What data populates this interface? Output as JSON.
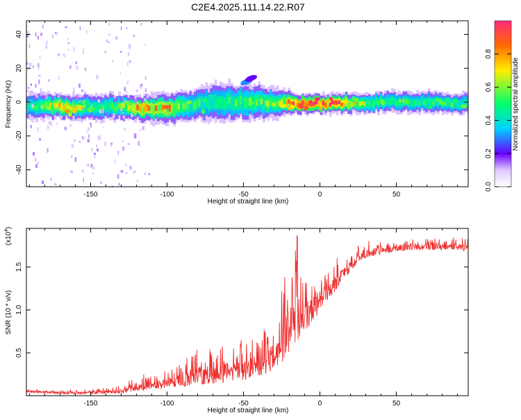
{
  "title": "C2E4.2025.111.14.22.R07",
  "colors": {
    "signal": "#ee2a2a",
    "axis": "#000000",
    "background": "#ffffff"
  },
  "colorbar": {
    "label": "Normalized spectral amplitude",
    "ticks": [
      "0.0",
      "0.2",
      "0.4",
      "0.6",
      "0.8"
    ],
    "range": [
      0,
      1
    ]
  },
  "chart_data": [
    {
      "type": "heatmap",
      "xlabel": "Height of straight line (km)",
      "ylabel": "Frequency (Hz)",
      "xlim": [
        -192,
        97
      ],
      "ylim": [
        -50,
        48
      ],
      "xticks": [
        "-150",
        "-100",
        "-50",
        "0",
        "50"
      ],
      "yticks": [
        "-40",
        "-20",
        "0",
        "20",
        "40"
      ],
      "band": [
        {
          "x": -190,
          "center": -2,
          "halfwidth": 5,
          "peak": 0.45
        },
        {
          "x": -170,
          "center": -3,
          "halfwidth": 5,
          "peak": 0.75
        },
        {
          "x": -150,
          "center": -3,
          "halfwidth": 5,
          "peak": 0.5
        },
        {
          "x": -130,
          "center": -3,
          "halfwidth": 5,
          "peak": 0.55
        },
        {
          "x": -120,
          "center": -4,
          "halfwidth": 5,
          "peak": 0.8
        },
        {
          "x": -100,
          "center": -4,
          "halfwidth": 6,
          "peak": 0.75
        },
        {
          "x": -85,
          "center": -2,
          "halfwidth": 6,
          "peak": 0.5
        },
        {
          "x": -70,
          "center": 0,
          "halfwidth": 7,
          "peak": 0.5
        },
        {
          "x": -50,
          "center": 0,
          "halfwidth": 7,
          "peak": 0.55
        },
        {
          "x": -30,
          "center": 0,
          "halfwidth": 6,
          "peak": 0.55
        },
        {
          "x": -15,
          "center": -1,
          "halfwidth": 4,
          "peak": 0.95
        },
        {
          "x": 0,
          "center": -1,
          "halfwidth": 4,
          "peak": 0.95
        },
        {
          "x": 10,
          "center": -1,
          "halfwidth": 4,
          "peak": 0.9
        },
        {
          "x": 30,
          "center": 0,
          "halfwidth": 4,
          "peak": 0.55
        },
        {
          "x": 60,
          "center": 0,
          "halfwidth": 4,
          "peak": 0.5
        },
        {
          "x": 97,
          "center": -1,
          "halfwidth": 4,
          "peak": 0.5
        }
      ],
      "features": [
        {
          "x": -48,
          "y": 12,
          "amplitude": 0.3
        },
        {
          "x": -45,
          "y": 14,
          "amplitude": 0.2
        }
      ]
    },
    {
      "type": "line",
      "xlabel": "Height of straight line (km)",
      "ylabel": "SNR (10 * v/v)",
      "ylabel_scale": "(x10",
      "ylabel_scale_exp": "4",
      "ylabel_scale_close": ")",
      "xlim": [
        -192,
        97
      ],
      "ylim": [
        0,
        1.95
      ],
      "xticks": [
        "-150",
        "-100",
        "-50",
        "0",
        "50"
      ],
      "yticks": [
        "0.5",
        "1.0",
        "1.5"
      ],
      "envelope": {
        "x": [
          -192,
          -170,
          -150,
          -130,
          -120,
          -110,
          -100,
          -90,
          -80,
          -70,
          -60,
          -50,
          -40,
          -30,
          -25,
          -20,
          -15,
          -10,
          -5,
          0,
          5,
          10,
          15,
          20,
          25,
          30,
          40,
          50,
          60,
          70,
          80,
          90,
          97
        ],
        "base": [
          0.04,
          0.02,
          0.02,
          0.03,
          0.05,
          0.07,
          0.08,
          0.1,
          0.12,
          0.14,
          0.16,
          0.18,
          0.22,
          0.3,
          0.38,
          0.48,
          0.6,
          0.72,
          0.85,
          0.98,
          1.1,
          1.22,
          1.35,
          1.45,
          1.55,
          1.6,
          1.65,
          1.68,
          1.7,
          1.7,
          1.7,
          1.7,
          1.68
        ],
        "top": [
          0.08,
          0.07,
          0.08,
          0.12,
          0.22,
          0.28,
          0.3,
          0.4,
          0.55,
          0.6,
          0.62,
          0.68,
          0.75,
          0.9,
          1.25,
          1.6,
          1.9,
          1.55,
          1.45,
          1.5,
          1.55,
          1.6,
          1.65,
          1.7,
          1.75,
          1.8,
          1.82,
          1.82,
          1.83,
          1.83,
          1.84,
          1.86,
          1.85
        ]
      }
    }
  ]
}
